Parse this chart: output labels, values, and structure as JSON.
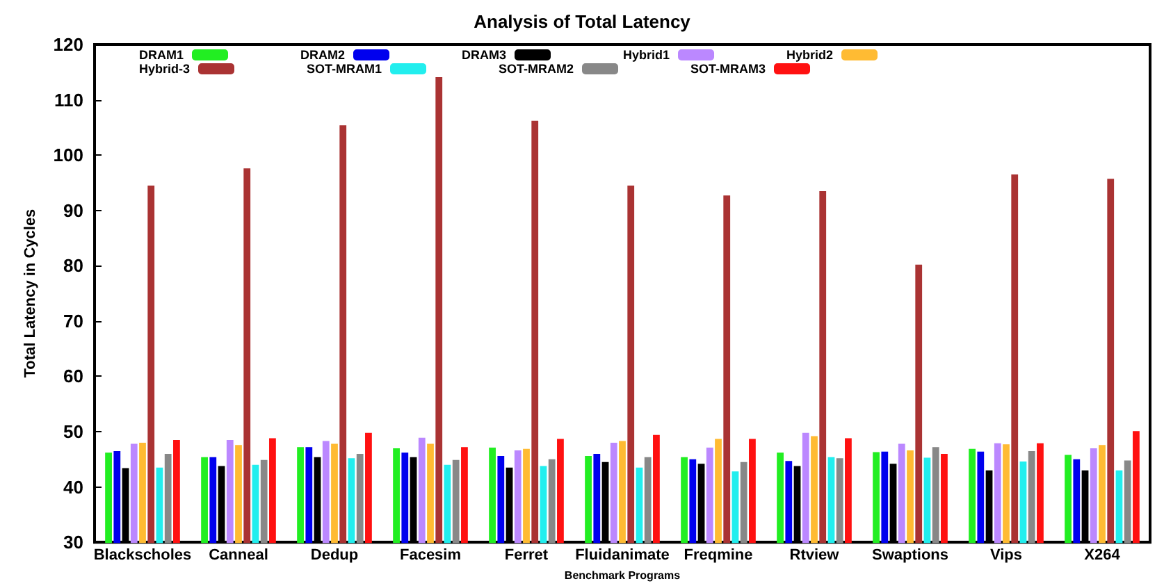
{
  "chart_data": {
    "type": "bar",
    "title": "Analysis of Total Latency",
    "xlabel": "Benchmark Programs",
    "ylabel": "Total Latency in Cycles",
    "categories": [
      "Blackscholes",
      "Canneal",
      "Dedup",
      "Facesim",
      "Ferret",
      "Fluidanimate",
      "Freqmine",
      "Rtview",
      "Swaptions",
      "Vips",
      "X264"
    ],
    "series": [
      {
        "name": "DRAM1",
        "color": "#22ee22",
        "values": [
          46.2,
          45.4,
          47.2,
          47.0,
          47.1,
          45.6,
          45.4,
          46.2,
          46.3,
          46.9,
          45.8
        ]
      },
      {
        "name": "DRAM2",
        "color": "#0000ee",
        "values": [
          46.5,
          45.4,
          47.2,
          46.2,
          45.6,
          46.0,
          45.0,
          44.7,
          46.4,
          46.4,
          45.0
        ]
      },
      {
        "name": "DRAM3",
        "color": "#000000",
        "values": [
          43.4,
          43.8,
          45.4,
          45.4,
          43.5,
          44.5,
          44.2,
          43.8,
          44.2,
          43.0,
          43.0
        ]
      },
      {
        "name": "Hybrid1",
        "color": "#bb88ff",
        "values": [
          47.8,
          48.5,
          48.3,
          48.9,
          46.6,
          48.0,
          47.1,
          49.8,
          47.8,
          47.9,
          47.0
        ]
      },
      {
        "name": "Hybrid2",
        "color": "#ffbb33",
        "values": [
          48.0,
          47.6,
          47.8,
          47.8,
          46.9,
          48.3,
          48.7,
          49.2,
          46.6,
          47.7,
          47.6
        ]
      },
      {
        "name": "Hybrid-3",
        "color": "#aa3333",
        "values": [
          94.5,
          97.6,
          105.4,
          114.1,
          106.2,
          94.5,
          92.7,
          93.5,
          80.2,
          96.5,
          95.7
        ]
      },
      {
        "name": "SOT-MRAM1",
        "color": "#22eeee",
        "values": [
          43.5,
          44.0,
          45.2,
          44.0,
          43.8,
          43.5,
          42.8,
          45.4,
          45.3,
          44.6,
          43.0
        ]
      },
      {
        "name": "SOT-MRAM2",
        "color": "#888888",
        "values": [
          46.0,
          44.9,
          46.0,
          44.9,
          45.0,
          45.4,
          44.5,
          45.2,
          47.2,
          46.5,
          44.8
        ]
      },
      {
        "name": "SOT-MRAM3",
        "color": "#ff1111",
        "values": [
          48.5,
          48.8,
          49.8,
          47.2,
          48.7,
          49.4,
          48.7,
          48.8,
          46.0,
          47.9,
          50.1
        ]
      }
    ],
    "ylim": [
      30,
      120
    ],
    "yticks": [
      30,
      40,
      50,
      60,
      70,
      80,
      90,
      100,
      110,
      120
    ],
    "grid": false,
    "legend": "top"
  }
}
